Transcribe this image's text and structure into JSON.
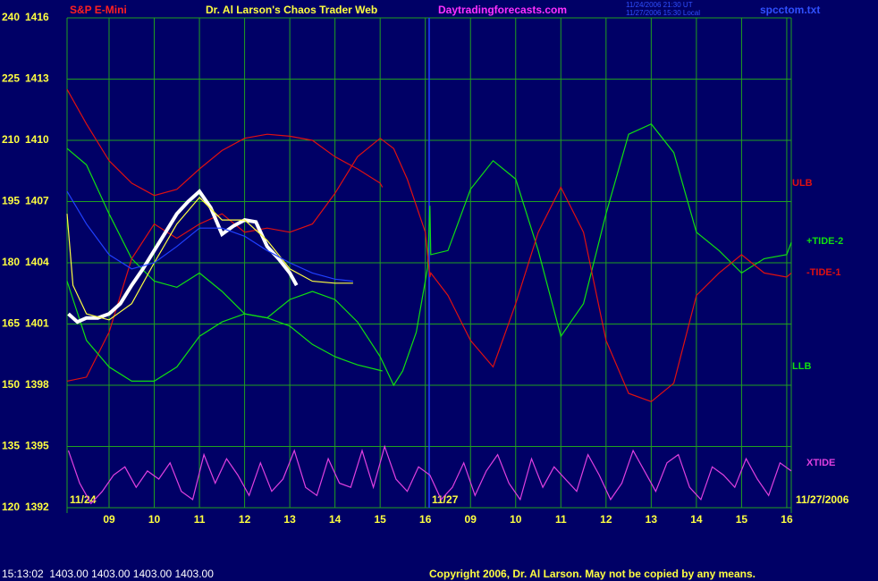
{
  "chart_data": {
    "type": "line",
    "title": "Dr. Al Larson's Chaos Trader Web",
    "instrument": "S&P E-Mini",
    "site": "Daytradingforecasts.com",
    "timestamp_lines": [
      "11/24/2006 21:30 UT",
      "11/27/2006 15:30 Local"
    ],
    "file": "spcctom.txt",
    "date_labels": [
      "11/24",
      "11/27",
      "11/27/2006"
    ],
    "status_line": "15:13:02  1403.00 1403.00 1403.00 1403.00",
    "copyright": "Copyright 2006, Dr. Al Larson. May not be copied by any means.",
    "grid": true,
    "xlim": [
      0.07,
      16.1
    ],
    "xticks": [
      {
        "value": 1,
        "label": "09"
      },
      {
        "value": 2,
        "label": "10"
      },
      {
        "value": 3,
        "label": "11"
      },
      {
        "value": 4,
        "label": "12"
      },
      {
        "value": 5,
        "label": "13"
      },
      {
        "value": 6,
        "label": "14"
      },
      {
        "value": 7,
        "label": "15"
      },
      {
        "value": 8,
        "label": "16"
      },
      {
        "value": 9,
        "label": "09"
      },
      {
        "value": 10,
        "label": "10"
      },
      {
        "value": 11,
        "label": "11"
      },
      {
        "value": 12,
        "label": "12"
      },
      {
        "value": 13,
        "label": "13"
      },
      {
        "value": 14,
        "label": "14"
      },
      {
        "value": 15,
        "label": "15"
      },
      {
        "value": 16,
        "label": "16"
      }
    ],
    "ylim": [
      120,
      240
    ],
    "yticks": [
      120,
      135,
      150,
      165,
      180,
      195,
      210,
      225,
      240
    ],
    "y2lim": [
      1392,
      1416
    ],
    "y2ticks": [
      1392,
      1395,
      1398,
      1401,
      1404,
      1407,
      1410,
      1413,
      1416
    ],
    "series": [
      {
        "name": "ULB",
        "color": "#e01010",
        "x": [
          0.07,
          0.5,
          1,
          1.5,
          2,
          2.5,
          3,
          3.5,
          4,
          4.5,
          5,
          5.5,
          6,
          6.5,
          7,
          7.05
        ],
        "values": [
          222.5,
          214,
          205,
          199.5,
          196.5,
          198,
          203,
          207.5,
          210.5,
          211.5,
          211,
          210,
          206,
          203,
          199.5,
          198.5
        ]
      },
      {
        "name": "+TIDE-2",
        "color": "#10e010",
        "x": [
          0.07,
          0.5,
          1,
          1.5,
          2,
          2.5,
          3,
          3.5,
          4,
          4.5,
          5,
          5.5,
          6,
          6.5,
          7,
          7.3,
          7.5,
          7.8,
          8.05,
          8.1,
          8.12,
          8.5,
          9,
          9.5,
          10,
          10.5,
          11,
          11.5,
          12,
          12.5,
          13,
          13.5,
          14,
          14.5,
          15,
          15.5,
          16,
          16.1
        ],
        "values": [
          208,
          204,
          192,
          181,
          175.5,
          174,
          177.5,
          173,
          167.5,
          166.5,
          171,
          173,
          171,
          165.5,
          157,
          150,
          153.5,
          163,
          178.7,
          194,
          182,
          183,
          198,
          205,
          200.5,
          183,
          162,
          170,
          192,
          211.5,
          214,
          207,
          187.5,
          183,
          177.5,
          181,
          182,
          185
        ]
      },
      {
        "name": "-TIDE-1",
        "color": "#e01010",
        "x": [
          0.07,
          0.5,
          1,
          1.5,
          2,
          2.5,
          3,
          3.5,
          4,
          4.5,
          5,
          5.5,
          6,
          6.5,
          7,
          7.3,
          7.6,
          8,
          8.1,
          8.12,
          8.5,
          9,
          9.5,
          10,
          10.5,
          11,
          11.5,
          12,
          12.5,
          13,
          13.5,
          14,
          14.5,
          15,
          15.5,
          16,
          16.1
        ],
        "values": [
          151,
          152,
          163,
          181,
          189.5,
          186,
          189.5,
          192,
          187.5,
          188.5,
          187.5,
          189.5,
          197,
          206,
          210.5,
          208,
          200.5,
          187.5,
          176.5,
          177.5,
          172,
          161,
          154.5,
          170,
          187.5,
          198.5,
          187.5,
          161,
          148,
          146,
          150.5,
          172,
          177.5,
          182,
          177.5,
          176.5,
          177.5
        ]
      },
      {
        "name": "LLB",
        "color": "#10e010",
        "x": [
          0.07,
          0.5,
          1,
          1.5,
          2,
          2.5,
          3,
          3.5,
          4,
          4.5,
          5,
          5.5,
          6,
          6.5,
          7.05
        ],
        "values": [
          175.5,
          161,
          154.5,
          151,
          151,
          154.5,
          162,
          165.5,
          167.5,
          166.5,
          164.5,
          160,
          157,
          155,
          153.5
        ]
      },
      {
        "name": "XTIDE",
        "color": "#e040e0",
        "x": [
          0.1,
          0.35,
          0.6,
          0.85,
          1.1,
          1.35,
          1.6,
          1.85,
          2.1,
          2.35,
          2.6,
          2.85,
          3.1,
          3.35,
          3.6,
          3.85,
          4.1,
          4.35,
          4.6,
          4.85,
          5.1,
          5.35,
          5.6,
          5.85,
          6.1,
          6.35,
          6.6,
          6.85,
          7.1,
          7.35,
          7.6,
          7.85,
          8.1,
          8.35,
          8.6,
          8.85,
          9.1,
          9.35,
          9.6,
          9.85,
          10.1,
          10.35,
          10.6,
          10.85,
          11.1,
          11.35,
          11.6,
          11.85,
          12.1,
          12.35,
          12.6,
          12.85,
          13.1,
          13.35,
          13.6,
          13.85,
          14.1,
          14.35,
          14.6,
          14.85,
          15.1,
          15.35,
          15.6,
          15.85,
          16.1
        ],
        "values": [
          134,
          126,
          121,
          124,
          128,
          130,
          125,
          129,
          127,
          131,
          124,
          122,
          133,
          126,
          132,
          128,
          123,
          131,
          124,
          127,
          134,
          125,
          123,
          132,
          126,
          125,
          134,
          125,
          135,
          127,
          124,
          130,
          128,
          122,
          125,
          131,
          123,
          129,
          133,
          126,
          122,
          132,
          125,
          130,
          127,
          124,
          133,
          128,
          122,
          126,
          134,
          129,
          124,
          131,
          133,
          125,
          122,
          130,
          128,
          125,
          132,
          127,
          123,
          131,
          129
        ]
      },
      {
        "color": "#ffffff",
        "axis": "y2",
        "x": [
          0.1,
          0.3,
          0.5,
          0.75,
          1,
          1.25,
          1.5,
          1.75,
          2,
          2.25,
          2.5,
          2.75,
          3,
          3.25,
          3.5,
          3.75,
          4,
          4.25,
          4.5,
          4.75,
          5,
          5.15
        ],
        "values": [
          1401.5,
          1401.1,
          1401.3,
          1401.3,
          1401.5,
          1402,
          1402.9,
          1403.7,
          1404.6,
          1405.5,
          1406.4,
          1407,
          1407.5,
          1406.7,
          1405.4,
          1405.8,
          1406.1,
          1406,
          1404.8,
          1404.2,
          1403.5,
          1402.9
        ]
      },
      {
        "color": "#ffff40",
        "axis": "y2",
        "x": [
          0.07,
          0.2,
          0.5,
          1,
          1.5,
          2,
          2.5,
          3,
          3.5,
          4,
          4.5,
          5,
          5.5,
          6,
          6.4
        ],
        "values": [
          1406.4,
          1402.9,
          1401.5,
          1401.2,
          1402,
          1404,
          1405.9,
          1407.2,
          1406.1,
          1406.1,
          1405.1,
          1403.7,
          1403.1,
          1403,
          1403
        ]
      },
      {
        "color": "#2040ff",
        "axis": "y2",
        "x": [
          0.07,
          0.5,
          1,
          1.5,
          2,
          2.5,
          3,
          3.5,
          4,
          4.5,
          5,
          5.5,
          6,
          6.4
        ],
        "values": [
          1407.5,
          1405.9,
          1404.4,
          1403.7,
          1404,
          1404.8,
          1405.7,
          1405.7,
          1405.3,
          1404.6,
          1404,
          1403.5,
          1403.2,
          1403.1
        ]
      }
    ]
  }
}
